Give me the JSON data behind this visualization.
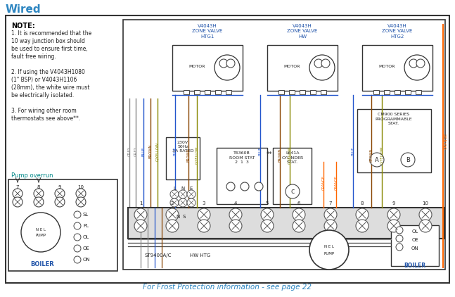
{
  "title": "Wired",
  "title_color": "#2E86C1",
  "bg_color": "#ffffff",
  "border_color": "#222222",
  "note_title": "NOTE:",
  "note_lines": [
    "1. It is recommended that the",
    "10 way junction box should",
    "be used to ensure first time,",
    "fault free wiring.",
    " ",
    "2. If using the V4043H1080",
    "(1\" BSP) or V4043H1106",
    "(28mm), the white wire must",
    "be electrically isolated.",
    " ",
    "3. For wiring other room",
    "thermostats see above**."
  ],
  "pump_overrun_label": "Pump overrun",
  "frost_text": "For Frost Protection information - see page 22",
  "frost_color": "#2E86C1",
  "grey": "#888888",
  "blue": "#2255CC",
  "brown": "#884400",
  "orange": "#FF6600",
  "gyellow": "#888800",
  "black": "#222222",
  "cyan": "#008888",
  "label_blue": "#2255AA"
}
